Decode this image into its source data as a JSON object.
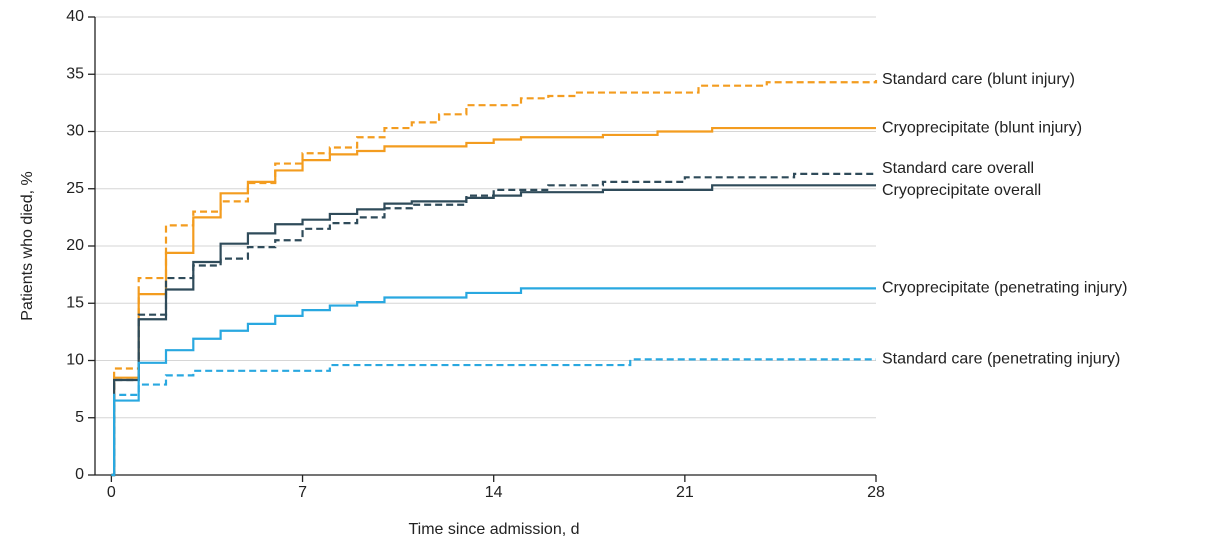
{
  "chart_data": {
    "type": "line",
    "step": "post",
    "x_label": "Time since admission, d",
    "y_label": "Patients who died, %",
    "xlim": [
      -0.6,
      28
    ],
    "ylim": [
      0,
      40
    ],
    "xticks": [
      0,
      7,
      14,
      21,
      28
    ],
    "yticks": [
      0,
      5,
      10,
      15,
      20,
      25,
      30,
      35,
      40
    ],
    "grid": true,
    "series": [
      {
        "name": "Standard care (blunt injury)",
        "color": "#f39c1f",
        "dashed": true,
        "x": [
          0,
          0.1,
          1,
          2,
          3,
          4,
          5,
          6,
          7,
          8,
          9,
          10,
          11,
          12,
          13,
          15,
          16,
          17,
          21.5,
          24,
          28
        ],
        "values": [
          0,
          9.3,
          17.2,
          21.8,
          23,
          23.9,
          25.5,
          27.2,
          28.1,
          28.6,
          29.5,
          30.3,
          30.8,
          31.5,
          32.3,
          32.9,
          33.1,
          33.4,
          34,
          34.3,
          34.5
        ]
      },
      {
        "name": "Cryoprecipitate (blunt injury)",
        "color": "#f39c1f",
        "dashed": false,
        "x": [
          0,
          0.1,
          1,
          2,
          3,
          4,
          5,
          6,
          7,
          8,
          9,
          10,
          13,
          14,
          15,
          18,
          20,
          22,
          28
        ],
        "values": [
          0,
          8.5,
          15.8,
          19.4,
          22.5,
          24.6,
          25.6,
          26.6,
          27.5,
          28,
          28.3,
          28.7,
          29,
          29.3,
          29.5,
          29.7,
          30,
          30.3,
          30.3
        ]
      },
      {
        "name": "Standard care overall",
        "color": "#2f4b5a",
        "dashed": true,
        "x": [
          0,
          0.1,
          1,
          2,
          3,
          4,
          5,
          6,
          7,
          8,
          9,
          10,
          11,
          13,
          14,
          16,
          18,
          21,
          25,
          28
        ],
        "values": [
          0,
          8.3,
          14,
          17.2,
          18.3,
          18.9,
          19.9,
          20.5,
          21.5,
          22,
          22.5,
          23.3,
          23.6,
          24.4,
          24.9,
          25.3,
          25.6,
          26,
          26.3,
          26.3
        ]
      },
      {
        "name": "Cryoprecipitate overall",
        "color": "#2f4b5a",
        "dashed": false,
        "x": [
          0,
          0.1,
          1,
          2,
          3,
          4,
          5,
          6,
          7,
          8,
          9,
          10,
          11,
          13,
          14,
          15,
          18,
          22,
          28
        ],
        "values": [
          0,
          8.3,
          13.6,
          16.2,
          18.6,
          20.2,
          21.1,
          21.9,
          22.3,
          22.8,
          23.2,
          23.7,
          23.9,
          24.2,
          24.4,
          24.7,
          24.9,
          25.3,
          25.3
        ]
      },
      {
        "name": "Cryoprecipitate (penetrating injury)",
        "color": "#29a8e0",
        "dashed": false,
        "x": [
          0,
          0.1,
          1,
          2,
          3,
          4,
          5,
          6,
          7,
          8,
          9,
          10,
          13,
          15,
          28
        ],
        "values": [
          0,
          6.5,
          9.8,
          10.9,
          11.9,
          12.6,
          13.2,
          13.9,
          14.4,
          14.8,
          15.1,
          15.5,
          15.9,
          16.3,
          16.3
        ]
      },
      {
        "name": "Standard care (penetrating injury)",
        "color": "#29a8e0",
        "dashed": true,
        "x": [
          0,
          0.1,
          1,
          2,
          3,
          8,
          19,
          28
        ],
        "values": [
          0,
          7,
          7.9,
          8.7,
          9.1,
          9.6,
          10.1,
          10.1
        ]
      }
    ]
  }
}
